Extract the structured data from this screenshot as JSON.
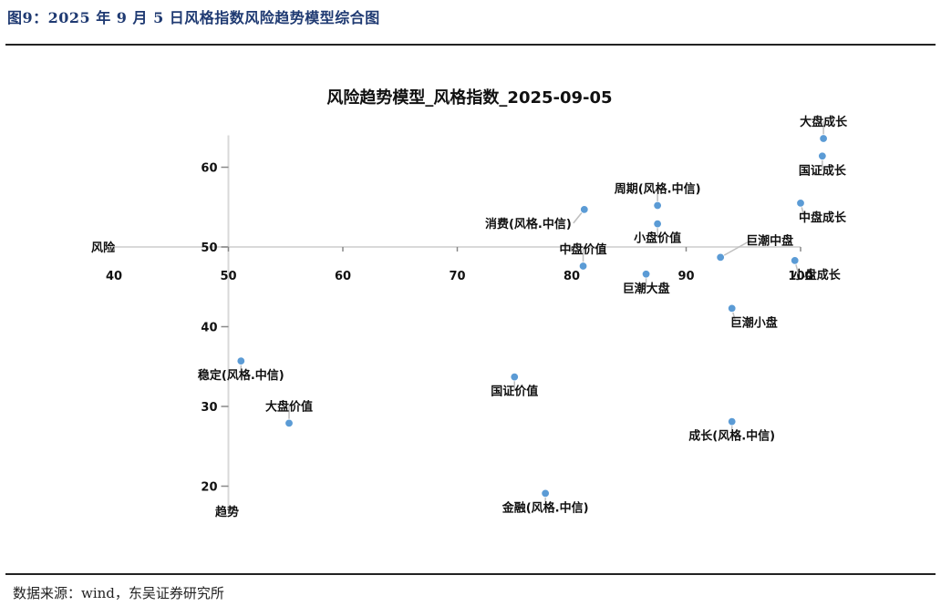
{
  "figure": {
    "caption": "图9：2025 年 9 月 5 日风格指数风险趋势模型综合图",
    "source": "数据来源：wind，东吴证券研究所"
  },
  "chart_data": {
    "type": "scatter",
    "title": "风险趋势模型_风格指数_2025-09-05",
    "xlabel": "风险",
    "ylabel": "趋势",
    "xlim": [
      40,
      100
    ],
    "ylim": [
      18,
      64
    ],
    "x_ticks": [
      40,
      50,
      60,
      70,
      80,
      90,
      100
    ],
    "y_ticks": [
      20,
      30,
      40,
      50,
      60
    ],
    "axis_cross": {
      "x": 50,
      "y": 50
    },
    "grid": false,
    "marker_color": "#5b9bd5",
    "leader_color": "#bfbfbf",
    "points": [
      {
        "label": "大盘成长",
        "x": 102.0,
        "y": 63.6,
        "label_side": "above"
      },
      {
        "label": "国证成长",
        "x": 101.9,
        "y": 61.4,
        "label_side": "below"
      },
      {
        "label": "中盘成长",
        "x": 100.0,
        "y": 55.5,
        "label_side": "below-right"
      },
      {
        "label": "周期(风格.中信)",
        "x": 87.5,
        "y": 55.2,
        "label_side": "above"
      },
      {
        "label": "消费(风格.中信)",
        "x": 81.1,
        "y": 54.7,
        "label_side": "left"
      },
      {
        "label": "小盘价值",
        "x": 87.5,
        "y": 52.9,
        "label_side": "below"
      },
      {
        "label": "巨潮中盘",
        "x": 93.0,
        "y": 48.7,
        "label_side": "right"
      },
      {
        "label": "小盘成长",
        "x": 99.5,
        "y": 48.3,
        "label_side": "below-right"
      },
      {
        "label": "中盘价值",
        "x": 81.0,
        "y": 47.6,
        "label_side": "above"
      },
      {
        "label": "巨潮大盘",
        "x": 86.5,
        "y": 46.6,
        "label_side": "below"
      },
      {
        "label": "巨潮小盘",
        "x": 94.0,
        "y": 42.3,
        "label_side": "below-right"
      },
      {
        "label": "稳定(风格.中信)",
        "x": 51.1,
        "y": 35.7,
        "label_side": "below"
      },
      {
        "label": "国证价值",
        "x": 75.0,
        "y": 33.7,
        "label_side": "below"
      },
      {
        "label": "大盘价值",
        "x": 55.3,
        "y": 27.9,
        "label_side": "above"
      },
      {
        "label": "成长(风格.中信)",
        "x": 94.0,
        "y": 28.1,
        "label_side": "below"
      },
      {
        "label": "金融(风格.中信)",
        "x": 77.7,
        "y": 19.1,
        "label_side": "below"
      }
    ]
  }
}
